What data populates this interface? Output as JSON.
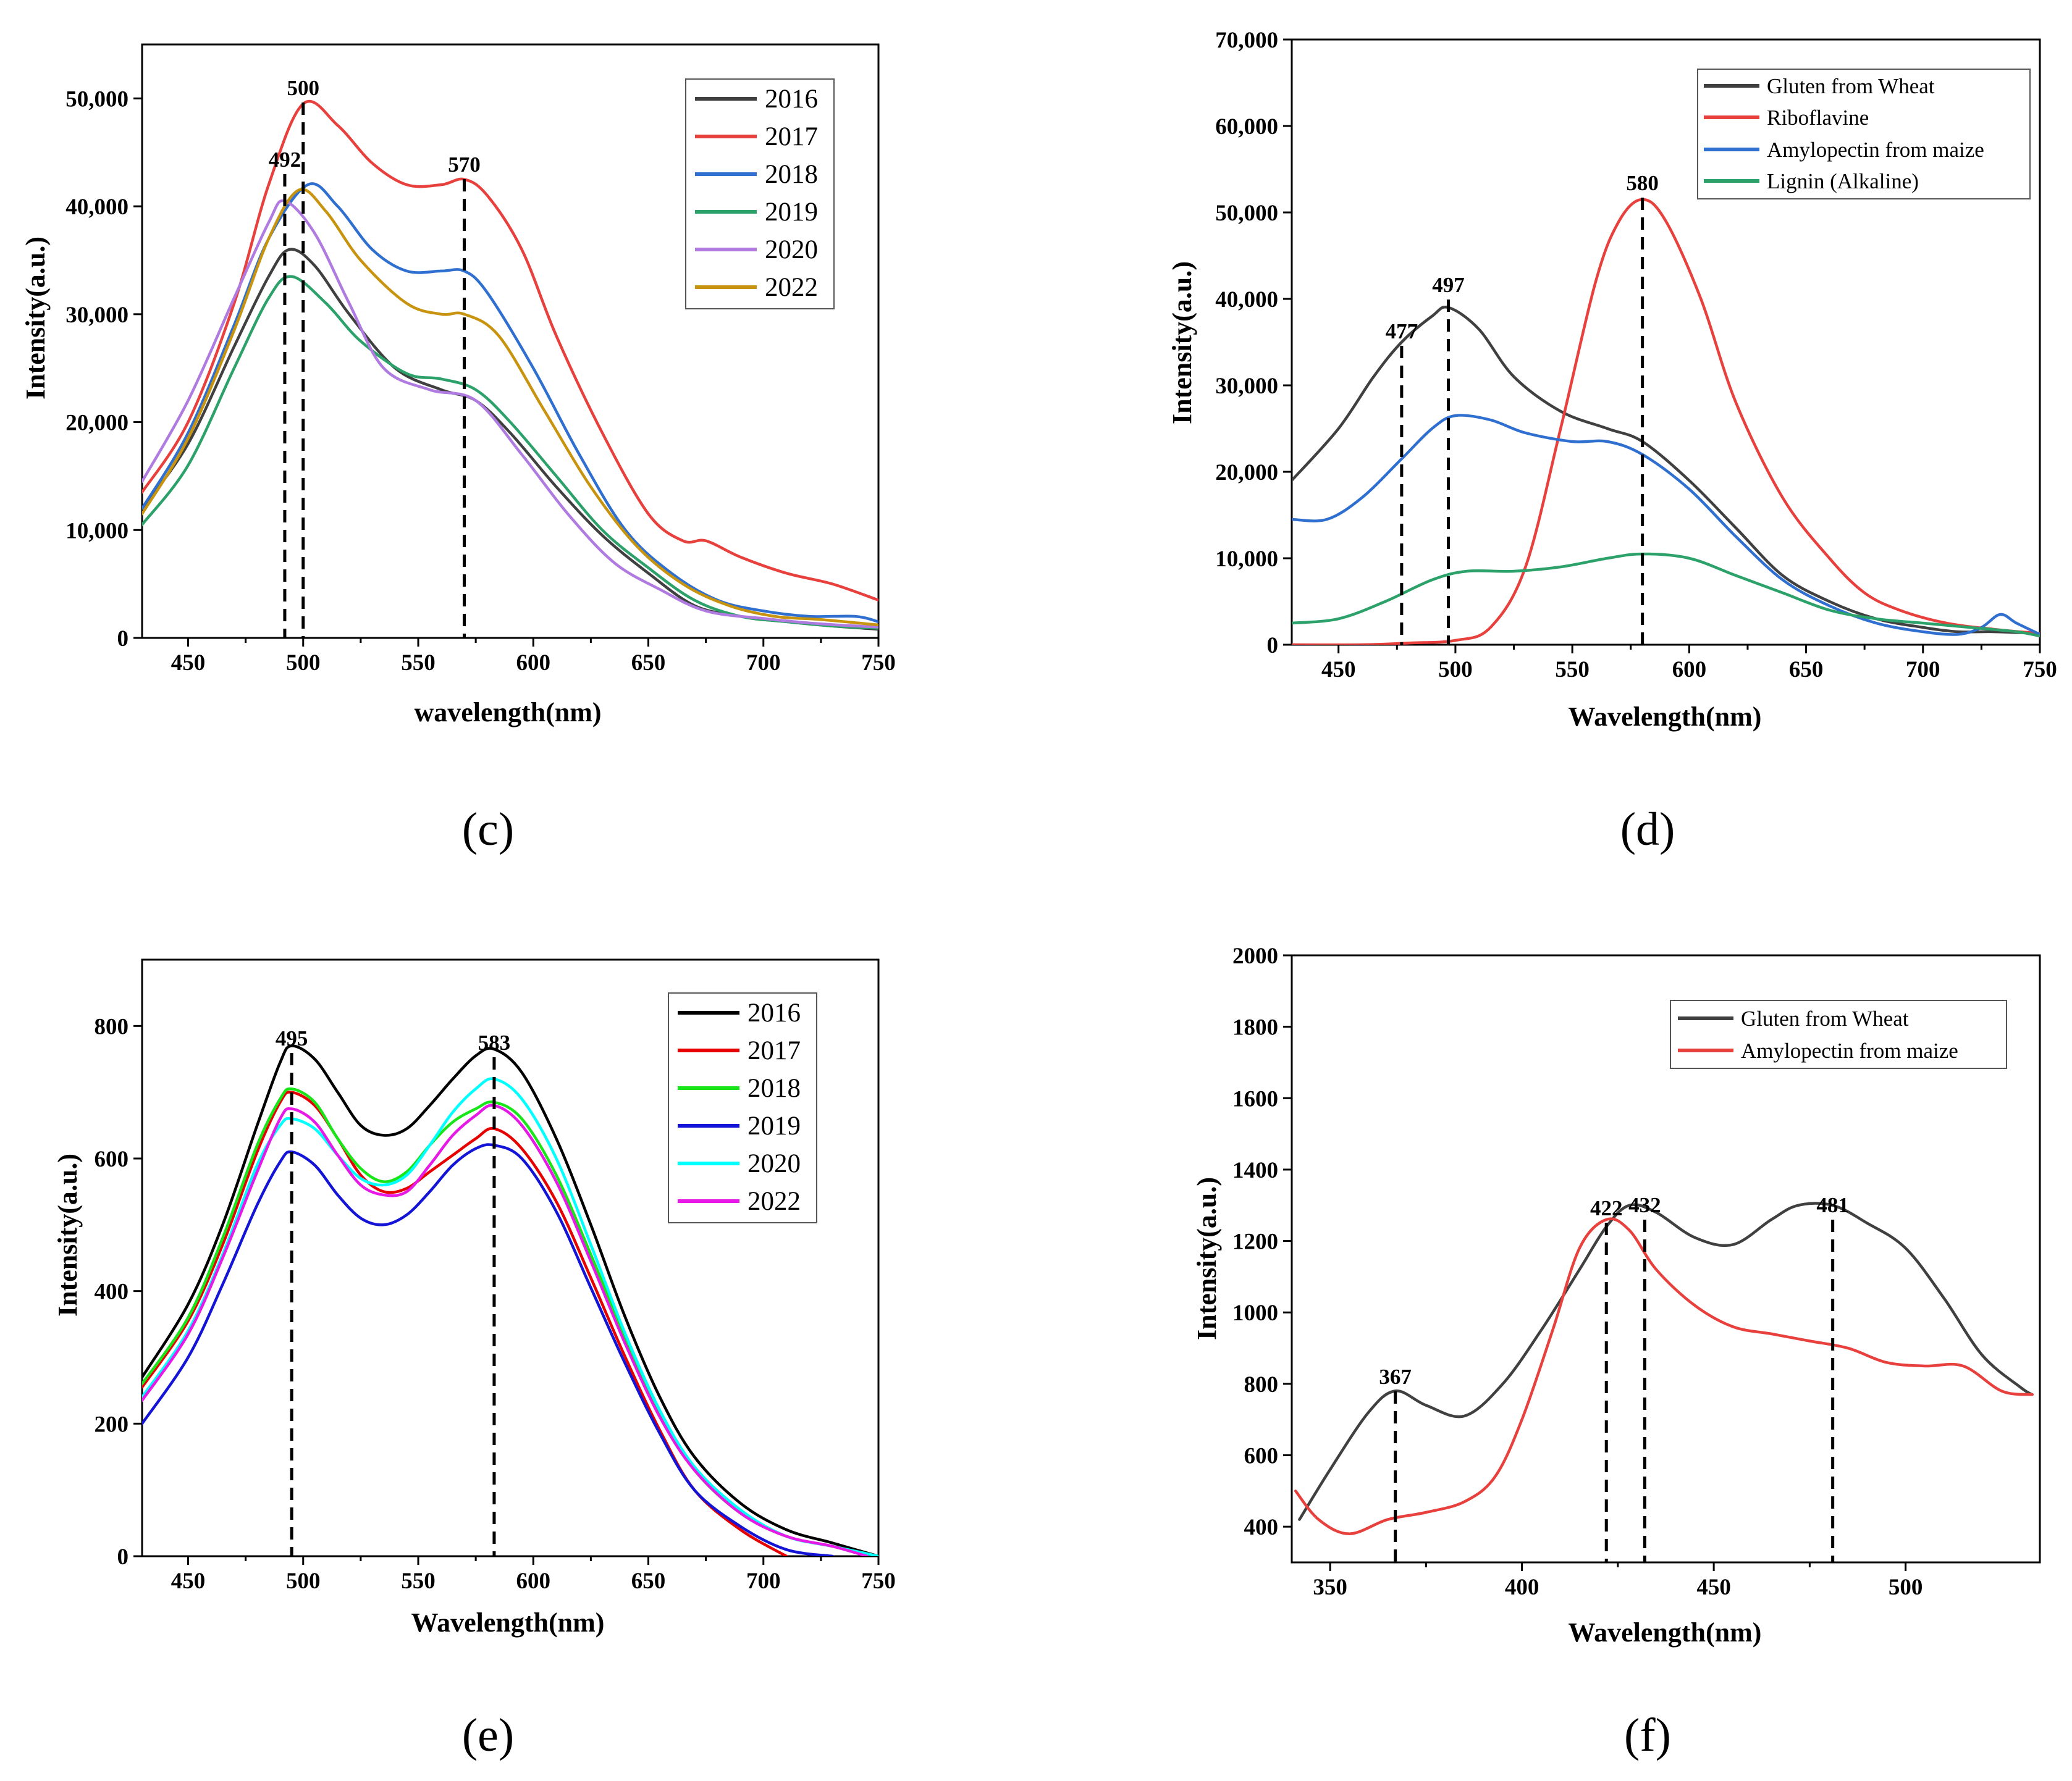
{
  "chart_data": [
    {
      "id": "c",
      "type": "line",
      "caption": "(c)",
      "xlabel": "wavelength(nm)",
      "ylabel": "Intensity(a.u.)",
      "xlim": [
        430,
        750
      ],
      "ylim": [
        0,
        55000
      ],
      "xticks": [
        450,
        500,
        550,
        600,
        650,
        700,
        750
      ],
      "yticks": [
        0,
        10000,
        20000,
        30000,
        40000,
        50000
      ],
      "ytick_labels": [
        "0",
        "10,000",
        "20,000",
        "30,000",
        "40,000",
        "50,000"
      ],
      "legend_position": "top-right",
      "peak_markers": [
        {
          "x": 492,
          "label": "492"
        },
        {
          "x": 500,
          "label": "500"
        },
        {
          "x": 570,
          "label": "570"
        }
      ],
      "series": [
        {
          "name": "2016",
          "color": "#404040",
          "x": [
            430,
            450,
            470,
            485,
            494,
            505,
            520,
            540,
            560,
            575,
            590,
            610,
            630,
            650,
            670,
            690,
            710,
            730,
            750
          ],
          "y": [
            12000,
            18000,
            27000,
            33500,
            36000,
            34500,
            30000,
            25000,
            23000,
            22000,
            19000,
            14000,
            9500,
            6000,
            3000,
            2000,
            1500,
            1100,
            800
          ]
        },
        {
          "name": "2017",
          "color": "#e8403c",
          "x": [
            430,
            450,
            470,
            485,
            500,
            515,
            530,
            545,
            560,
            570,
            580,
            595,
            610,
            630,
            650,
            665,
            675,
            690,
            710,
            730,
            750
          ],
          "y": [
            13500,
            20000,
            31000,
            42000,
            49500,
            47500,
            44000,
            42000,
            42000,
            42500,
            41000,
            36000,
            28000,
            19000,
            11500,
            9000,
            9000,
            7500,
            6000,
            5000,
            3500
          ]
        },
        {
          "name": "2018",
          "color": "#2f6fd0",
          "x": [
            430,
            450,
            470,
            485,
            502,
            515,
            530,
            545,
            560,
            570,
            580,
            600,
            620,
            640,
            660,
            680,
            700,
            720,
            740,
            750
          ],
          "y": [
            12000,
            19000,
            29000,
            37000,
            42000,
            40000,
            36000,
            34000,
            34000,
            34000,
            32000,
            25000,
            17000,
            10000,
            6000,
            3500,
            2500,
            2000,
            2000,
            1500
          ]
        },
        {
          "name": "2019",
          "color": "#2ca26a",
          "x": [
            430,
            450,
            470,
            485,
            495,
            510,
            525,
            545,
            560,
            575,
            590,
            610,
            630,
            650,
            670,
            690,
            710,
            730,
            750
          ],
          "y": [
            10500,
            16000,
            25000,
            31500,
            33500,
            31000,
            27500,
            24500,
            24000,
            23000,
            20000,
            15000,
            10000,
            6500,
            3500,
            2000,
            1500,
            1100,
            900
          ]
        },
        {
          "name": "2020",
          "color": "#b07be0",
          "x": [
            430,
            450,
            470,
            485,
            492,
            505,
            520,
            535,
            555,
            575,
            595,
            615,
            635,
            655,
            675,
            700,
            725,
            750
          ],
          "y": [
            14500,
            22000,
            31500,
            38500,
            40500,
            37500,
            31000,
            25000,
            23000,
            22000,
            17000,
            11500,
            7000,
            4500,
            2500,
            1800,
            1300,
            1000
          ]
        },
        {
          "name": "2022",
          "color": "#c89410",
          "x": [
            430,
            450,
            470,
            485,
            498,
            510,
            525,
            545,
            560,
            570,
            585,
            605,
            625,
            645,
            665,
            685,
            705,
            725,
            750
          ],
          "y": [
            11500,
            18500,
            28500,
            37000,
            41500,
            39500,
            35000,
            31000,
            30000,
            30000,
            28000,
            21000,
            14000,
            8500,
            5000,
            3000,
            2000,
            1700,
            1200
          ]
        }
      ]
    },
    {
      "id": "d",
      "type": "line",
      "caption": "(d)",
      "xlabel": "Wavelength(nm)",
      "ylabel": "Intensity(a.u.)",
      "xlim": [
        430,
        750
      ],
      "ylim": [
        0,
        70000
      ],
      "xticks": [
        450,
        500,
        550,
        600,
        650,
        700,
        750
      ],
      "yticks": [
        0,
        10000,
        20000,
        30000,
        40000,
        50000,
        60000,
        70000
      ],
      "ytick_labels": [
        "0",
        "10,000",
        "20,000",
        "30,000",
        "40,000",
        "50,000",
        "60,000",
        "70,000"
      ],
      "legend_position": "top-right",
      "peak_markers": [
        {
          "x": 477,
          "label": "477"
        },
        {
          "x": 497,
          "label": "497"
        },
        {
          "x": 580,
          "label": "580"
        }
      ],
      "series": [
        {
          "name": "Gluten from Wheat",
          "color": "#404040",
          "x": [
            430,
            450,
            465,
            477,
            490,
            497,
            510,
            525,
            545,
            565,
            580,
            600,
            620,
            640,
            660,
            680,
            700,
            715,
            730,
            750
          ],
          "y": [
            19000,
            25000,
            31000,
            35000,
            38000,
            39000,
            36500,
            31000,
            27000,
            25000,
            23500,
            19000,
            13500,
            8000,
            5000,
            3000,
            2000,
            1500,
            1500,
            1300
          ]
        },
        {
          "name": "Riboflavine",
          "color": "#e8403c",
          "x": [
            430,
            460,
            480,
            500,
            515,
            530,
            545,
            560,
            570,
            580,
            590,
            605,
            620,
            640,
            660,
            675,
            690,
            710,
            730,
            750
          ],
          "y": [
            0,
            0,
            200,
            500,
            2000,
            9000,
            25000,
            42000,
            49000,
            51500,
            49000,
            40000,
            28000,
            17000,
            10000,
            6000,
            4000,
            2500,
            1800,
            1300
          ]
        },
        {
          "name": "Amylopectin from maize",
          "color": "#2f6fd0",
          "x": [
            430,
            445,
            460,
            477,
            490,
            500,
            515,
            530,
            550,
            565,
            580,
            600,
            620,
            640,
            660,
            680,
            700,
            715,
            725,
            733,
            740,
            750
          ],
          "y": [
            14500,
            14500,
            17000,
            21500,
            25000,
            26500,
            26000,
            24500,
            23500,
            23500,
            22000,
            18000,
            12500,
            7500,
            4500,
            2500,
            1500,
            1200,
            2000,
            3500,
            2500,
            1200
          ]
        },
        {
          "name": "Lignin (Alkaline)",
          "color": "#2ca26a",
          "x": [
            430,
            450,
            470,
            490,
            505,
            525,
            545,
            565,
            580,
            600,
            620,
            640,
            660,
            680,
            700,
            720,
            740,
            750
          ],
          "y": [
            2500,
            3000,
            5000,
            7500,
            8500,
            8500,
            9000,
            10000,
            10500,
            10000,
            8000,
            6000,
            4000,
            3000,
            2500,
            2000,
            1500,
            1000
          ]
        }
      ]
    },
    {
      "id": "e",
      "type": "line",
      "caption": "(e)",
      "xlabel": "Wavelength(nm)",
      "ylabel": "Intensity(a.u.)",
      "xlim": [
        430,
        750
      ],
      "ylim": [
        0,
        900
      ],
      "xticks": [
        450,
        500,
        550,
        600,
        650,
        700,
        750
      ],
      "yticks": [
        0,
        200,
        400,
        600,
        800
      ],
      "ytick_labels": [
        "0",
        "200",
        "400",
        "600",
        "800"
      ],
      "legend_position": "top-right",
      "peak_markers": [
        {
          "x": 495,
          "label": "495"
        },
        {
          "x": 583,
          "label": "583"
        }
      ],
      "series": [
        {
          "name": "2016",
          "color": "#000000",
          "x": [
            430,
            450,
            465,
            480,
            490,
            495,
            505,
            515,
            525,
            535,
            545,
            555,
            565,
            575,
            583,
            595,
            610,
            625,
            640,
            655,
            670,
            690,
            710,
            730,
            750
          ],
          "y": [
            270,
            380,
            500,
            650,
            745,
            770,
            750,
            700,
            650,
            635,
            645,
            680,
            720,
            755,
            765,
            730,
            630,
            500,
            360,
            240,
            150,
            80,
            40,
            20,
            0
          ]
        },
        {
          "name": "2017",
          "color": "#e60000",
          "x": [
            430,
            450,
            465,
            480,
            490,
            495,
            505,
            515,
            525,
            535,
            545,
            555,
            565,
            575,
            583,
            595,
            610,
            625,
            640,
            655,
            670,
            690,
            710
          ],
          "y": [
            255,
            355,
            470,
            610,
            685,
            700,
            680,
            630,
            575,
            550,
            555,
            580,
            605,
            630,
            645,
            615,
            535,
            420,
            300,
            190,
            100,
            40,
            0
          ]
        },
        {
          "name": "2018",
          "color": "#19e619",
          "x": [
            430,
            450,
            465,
            480,
            490,
            495,
            505,
            515,
            525,
            535,
            545,
            555,
            565,
            575,
            583,
            595,
            610,
            625,
            640,
            655,
            670,
            690,
            710,
            730,
            750
          ],
          "y": [
            260,
            360,
            480,
            620,
            690,
            705,
            685,
            630,
            585,
            565,
            580,
            620,
            655,
            675,
            685,
            660,
            575,
            455,
            330,
            215,
            130,
            65,
            30,
            15,
            0
          ]
        },
        {
          "name": "2019",
          "color": "#1414d6",
          "x": [
            430,
            450,
            465,
            480,
            490,
            495,
            505,
            515,
            525,
            535,
            545,
            555,
            565,
            575,
            583,
            595,
            610,
            625,
            640,
            655,
            670,
            690,
            710,
            730
          ],
          "y": [
            200,
            300,
            410,
            530,
            595,
            610,
            590,
            545,
            510,
            500,
            515,
            550,
            590,
            615,
            620,
            600,
            520,
            405,
            290,
            185,
            100,
            45,
            10,
            0
          ]
        },
        {
          "name": "2020",
          "color": "#00ffff",
          "x": [
            430,
            450,
            465,
            480,
            490,
            495,
            505,
            515,
            525,
            535,
            545,
            555,
            565,
            575,
            583,
            595,
            610,
            625,
            640,
            655,
            670,
            690,
            710,
            730,
            750
          ],
          "y": [
            240,
            340,
            455,
            590,
            650,
            660,
            645,
            605,
            570,
            560,
            575,
            620,
            670,
            705,
            720,
            690,
            600,
            470,
            335,
            220,
            135,
            70,
            30,
            15,
            0
          ]
        },
        {
          "name": "2022",
          "color": "#e619e6",
          "x": [
            430,
            450,
            465,
            480,
            490,
            495,
            505,
            515,
            525,
            535,
            545,
            555,
            565,
            575,
            583,
            595,
            610,
            625,
            640,
            655,
            670,
            690,
            710,
            730,
            745
          ],
          "y": [
            235,
            335,
            450,
            580,
            660,
            675,
            655,
            605,
            560,
            545,
            550,
            590,
            635,
            665,
            680,
            650,
            565,
            445,
            320,
            210,
            130,
            65,
            30,
            15,
            0
          ]
        }
      ]
    },
    {
      "id": "f",
      "type": "line",
      "caption": "(f)",
      "xlabel": "Wavelength(nm)",
      "ylabel": "Intensity(a.u.)",
      "xlim": [
        340,
        535
      ],
      "ylim": [
        300,
        2000
      ],
      "xticks": [
        350,
        400,
        450,
        500
      ],
      "yticks": [
        400,
        600,
        800,
        1000,
        1200,
        1400,
        1600,
        1800,
        2000
      ],
      "ytick_labels": [
        "400",
        "600",
        "800",
        "1000",
        "1200",
        "1400",
        "1600",
        "1800",
        "2000"
      ],
      "legend_position": "top-right",
      "peak_markers": [
        {
          "x": 367,
          "label": "367"
        },
        {
          "x": 422,
          "label": "422"
        },
        {
          "x": 432,
          "label": "432"
        },
        {
          "x": 481,
          "label": "481"
        }
      ],
      "series": [
        {
          "name": "Gluten from Wheat",
          "color": "#404040",
          "x": [
            342,
            350,
            360,
            367,
            375,
            385,
            395,
            405,
            415,
            422,
            428,
            435,
            445,
            455,
            465,
            472,
            481,
            490,
            500,
            510,
            520,
            530,
            533
          ],
          "y": [
            420,
            560,
            720,
            780,
            740,
            710,
            800,
            950,
            1120,
            1240,
            1300,
            1280,
            1210,
            1190,
            1260,
            1300,
            1300,
            1250,
            1180,
            1040,
            880,
            790,
            770
          ]
        },
        {
          "name": "Amylopectin from maize",
          "color": "#e8403c",
          "x": [
            341,
            347,
            355,
            365,
            375,
            385,
            393,
            400,
            408,
            415,
            422,
            428,
            435,
            445,
            455,
            465,
            475,
            485,
            495,
            505,
            515,
            525,
            533
          ],
          "y": [
            500,
            420,
            380,
            420,
            440,
            470,
            540,
            700,
            950,
            1180,
            1260,
            1230,
            1120,
            1020,
            960,
            940,
            920,
            900,
            860,
            850,
            850,
            780,
            770
          ]
        }
      ]
    }
  ]
}
